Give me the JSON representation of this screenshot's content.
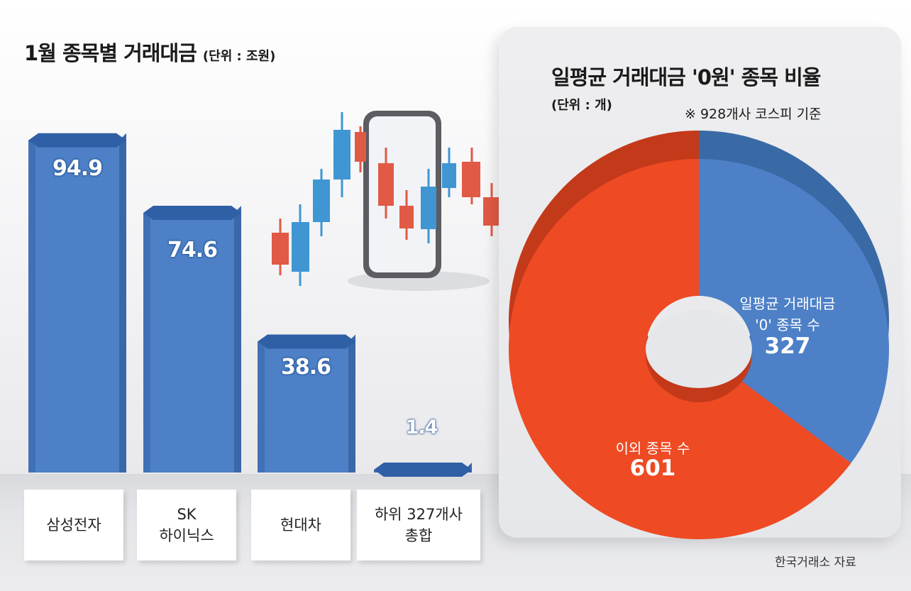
{
  "chart_data": [
    {
      "type": "bar",
      "title": "1월 종목별 거래대금",
      "unit": "(단위 : 조원)",
      "categories": [
        {
          "line1": "삼성전자",
          "line2": ""
        },
        {
          "line1": "SK",
          "line2": "하이닉스"
        },
        {
          "line1": "현대차",
          "line2": ""
        },
        {
          "line1": "하위 327개사",
          "line2": "총합"
        }
      ],
      "values": [
        94.9,
        74.6,
        38.6,
        1.4
      ],
      "value_labels": [
        "94.9",
        "74.6",
        "38.6",
        "1.4"
      ],
      "ylim": [
        0,
        100
      ]
    },
    {
      "type": "pie",
      "title": "일평균 거래대금 '0원' 종목 비율",
      "unit": "(단위 : 개)",
      "note": "※ 928개사 코스피 기준",
      "slices": [
        {
          "label_line1": "일평균 거래대금",
          "label_line2": "'0' 종목 수",
          "value": 327,
          "value_label": "327",
          "color": "#4d80c7"
        },
        {
          "label_line1": "이외 종목 수",
          "label_line2": "",
          "value": 601,
          "value_label": "601",
          "color": "#ee4a23"
        }
      ]
    }
  ],
  "source": "한국거래소 자료",
  "colors": {
    "bar_front": "#4d80c7",
    "bar_side": "#3a67a8",
    "bar_top": "#2f5fa5",
    "pie_blue": "#4d80c7",
    "pie_blue_dark": "#3a6aa6",
    "pie_red": "#ee4a23",
    "pie_red_dark": "#c33a1a",
    "candle_up": "#3f96d3",
    "candle_down": "#e05a45"
  }
}
